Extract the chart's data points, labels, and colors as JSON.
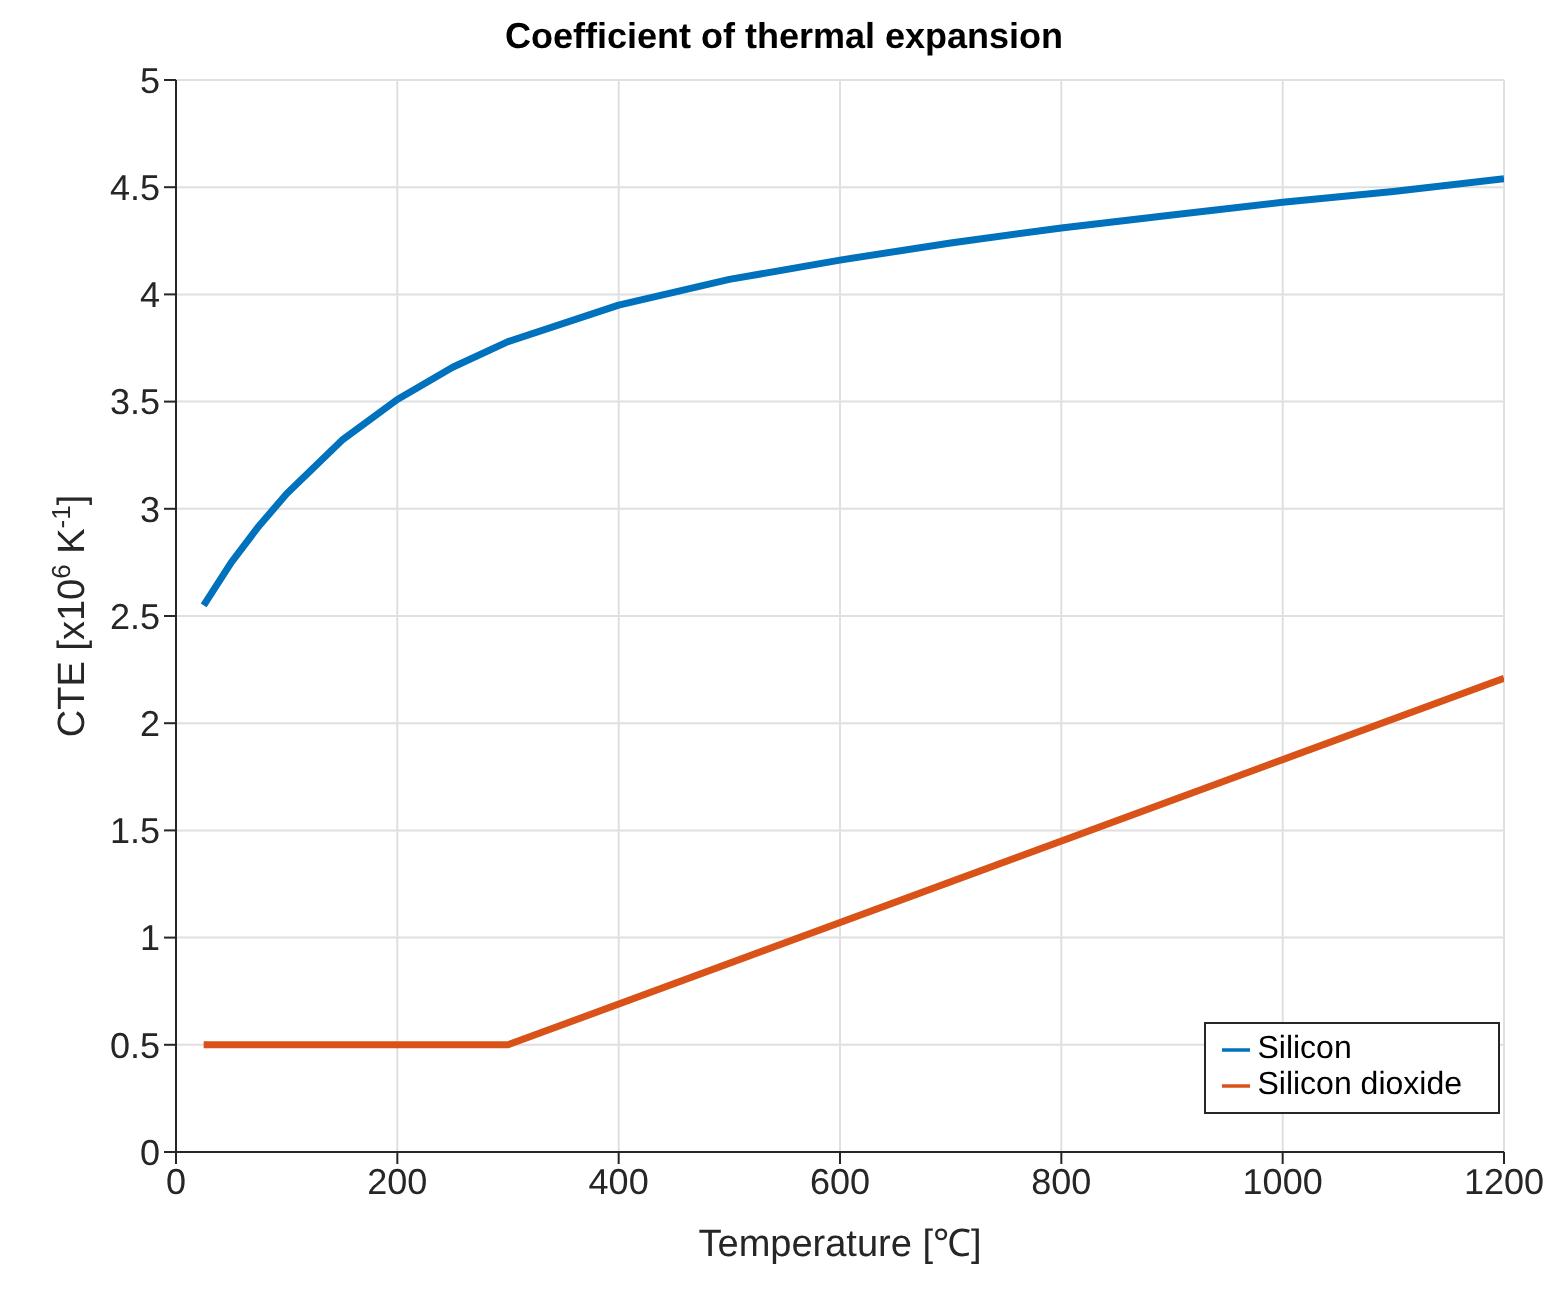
{
  "chart_data": {
    "type": "line",
    "title": "Coefficient of thermal expansion",
    "xlabel": "Temperature [℃]",
    "ylabel": "CTE [x10$^{6}$ K$^{-1}$]",
    "xlim": [
      0,
      1200
    ],
    "xticks": [
      0,
      200,
      400,
      600,
      800,
      1000,
      1200
    ],
    "ylim": [
      0,
      5
    ],
    "yticks": [
      0,
      0.5,
      1,
      1.5,
      2,
      2.5,
      3,
      3.5,
      4,
      4.5,
      5
    ],
    "grid": true,
    "legend": "bottom right",
    "line_style": "solid",
    "marker": "none",
    "series": [
      {
        "name": "Silicon",
        "color": "#0072bd",
        "x": [
          25,
          50,
          75,
          100,
          150,
          200,
          250,
          300,
          400,
          500,
          600,
          700,
          800,
          900,
          1000,
          1100,
          1200
        ],
        "values": [
          2.55,
          2.75,
          2.92,
          3.07,
          3.32,
          3.51,
          3.66,
          3.78,
          3.95,
          4.07,
          4.16,
          4.24,
          4.31,
          4.37,
          4.43,
          4.48,
          4.54
        ]
      },
      {
        "name": "Silicon dioxide",
        "color": "#d95319",
        "x": [
          25,
          300,
          1200
        ],
        "values": [
          0.5,
          0.5,
          2.21
        ]
      }
    ]
  }
}
